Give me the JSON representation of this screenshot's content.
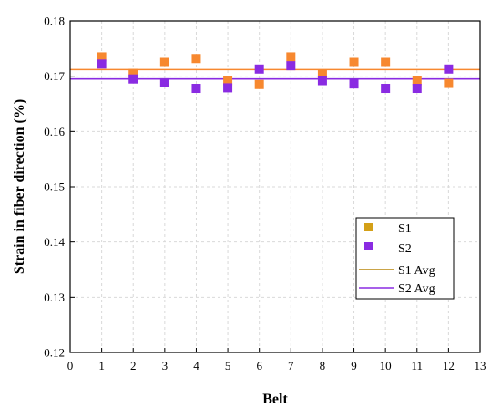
{
  "chart_data": {
    "type": "scatter",
    "xlabel": "Belt",
    "ylabel": "Strain in fiber direction (%)",
    "xlim": [
      0,
      13
    ],
    "ylim": [
      0.12,
      0.18
    ],
    "xticks": [
      "0",
      "1",
      "2",
      "3",
      "4",
      "5",
      "6",
      "7",
      "8",
      "9",
      "10",
      "11",
      "12",
      "13"
    ],
    "yticks": [
      "0.12",
      "0.13",
      "0.14",
      "0.15",
      "0.16",
      "0.17",
      "0.18"
    ],
    "grid": true,
    "legend_position": "lower-right",
    "series": [
      {
        "name": "S1",
        "marker": "square",
        "color": "#F7882F",
        "legend_color": "#D4A017",
        "x": [
          1,
          2,
          3,
          4,
          5,
          6,
          7,
          8,
          9,
          10,
          11,
          12
        ],
        "values": [
          0.1735,
          0.1705,
          0.1725,
          0.1732,
          0.1692,
          0.1685,
          0.1735,
          0.1703,
          0.1725,
          0.1725,
          0.1692,
          0.1687
        ]
      },
      {
        "name": "S2",
        "marker": "square",
        "color": "#8A2BE2",
        "legend_color": "#8A2BE2",
        "x": [
          1,
          2,
          3,
          4,
          5,
          6,
          7,
          8,
          9,
          10,
          11,
          12
        ],
        "values": [
          0.1722,
          0.1695,
          0.1688,
          0.1678,
          0.1679,
          0.1713,
          0.1719,
          0.1692,
          0.1686,
          0.1678,
          0.1678,
          0.1713
        ]
      }
    ],
    "lines": [
      {
        "name": "S1 Avg",
        "y": 0.1712,
        "color": "#F7882F",
        "legend_color": "#B8860B"
      },
      {
        "name": "S2 Avg",
        "y": 0.1695,
        "color": "#8A2BE2",
        "legend_color": "#8A2BE2"
      }
    ]
  }
}
